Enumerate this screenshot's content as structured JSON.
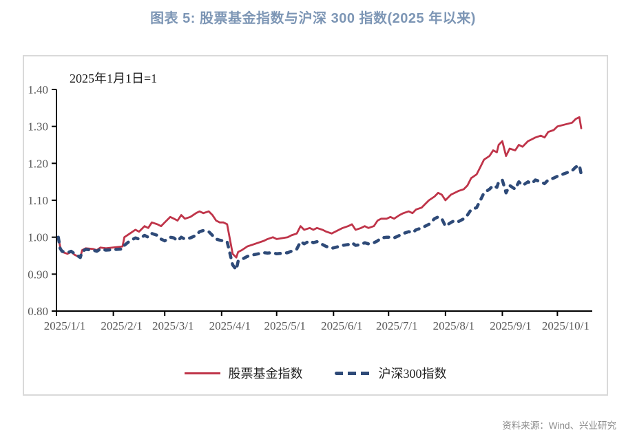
{
  "page": {
    "title": "图表 5:  股票基金指数与沪深 300 指数(2025 年以来)",
    "source": "资料来源：Wind、兴业研究"
  },
  "colors": {
    "title": "#7d96b5",
    "fund_line": "#bf3449",
    "csi300_line": "#2e4a78",
    "axis": "#000000",
    "tick_text": "#595959",
    "frame_border": "#d9d9d9",
    "source_text": "#8c8c8c"
  },
  "chart_data": {
    "type": "line",
    "title": "股票基金指数与沪深300指数(2025年以来)",
    "annotation": "2025年1月1日=1",
    "x_axis": {
      "tick_labels": [
        "2025/1/1",
        "2025/2/1",
        "2025/3/1",
        "2025/4/1",
        "2025/5/1",
        "2025/6/1",
        "2025/7/1",
        "2025/8/1",
        "2025/9/1",
        "2025/10/1"
      ],
      "tick_days": [
        0,
        31,
        59,
        90,
        120,
        151,
        181,
        212,
        243,
        273
      ],
      "domain_days": [
        0,
        292
      ]
    },
    "y_axis": {
      "tick_labels": [
        "0.80",
        "0.90",
        "1.00",
        "1.10",
        "1.20",
        "1.30",
        "1.40"
      ],
      "range": [
        0.8,
        1.4
      ]
    },
    "legend_position": "bottom",
    "series": [
      {
        "name": "股票基金指数",
        "color": "#bf3449",
        "style": "solid",
        "points": [
          [
            1,
            1.0
          ],
          [
            2,
            0.975
          ],
          [
            3,
            0.96
          ],
          [
            6,
            0.955
          ],
          [
            8,
            0.96
          ],
          [
            10,
            0.952
          ],
          [
            13,
            0.945
          ],
          [
            14,
            0.965
          ],
          [
            16,
            0.97
          ],
          [
            20,
            0.968
          ],
          [
            22,
            0.965
          ],
          [
            24,
            0.972
          ],
          [
            27,
            0.97
          ],
          [
            36,
            0.975
          ],
          [
            37,
            1.0
          ],
          [
            40,
            1.01
          ],
          [
            43,
            1.02
          ],
          [
            45,
            1.015
          ],
          [
            48,
            1.03
          ],
          [
            50,
            1.025
          ],
          [
            52,
            1.04
          ],
          [
            55,
            1.035
          ],
          [
            57,
            1.03
          ],
          [
            59,
            1.04
          ],
          [
            62,
            1.055
          ],
          [
            64,
            1.05
          ],
          [
            66,
            1.045
          ],
          [
            68,
            1.06
          ],
          [
            70,
            1.05
          ],
          [
            73,
            1.055
          ],
          [
            76,
            1.065
          ],
          [
            78,
            1.07
          ],
          [
            80,
            1.065
          ],
          [
            83,
            1.07
          ],
          [
            85,
            1.06
          ],
          [
            87,
            1.045
          ],
          [
            89,
            1.04
          ],
          [
            91,
            1.04
          ],
          [
            93,
            1.035
          ],
          [
            96,
            0.955
          ],
          [
            98,
            0.945
          ],
          [
            99,
            0.96
          ],
          [
            101,
            0.965
          ],
          [
            104,
            0.975
          ],
          [
            107,
            0.98
          ],
          [
            110,
            0.985
          ],
          [
            113,
            0.99
          ],
          [
            115,
            0.995
          ],
          [
            118,
            1.0
          ],
          [
            120,
            0.995
          ],
          [
            126,
            1.0
          ],
          [
            128,
            1.005
          ],
          [
            131,
            1.01
          ],
          [
            133,
            1.03
          ],
          [
            135,
            1.02
          ],
          [
            138,
            1.025
          ],
          [
            140,
            1.02
          ],
          [
            142,
            1.025
          ],
          [
            145,
            1.02
          ],
          [
            147,
            1.015
          ],
          [
            150,
            1.01
          ],
          [
            154,
            1.02
          ],
          [
            156,
            1.025
          ],
          [
            159,
            1.03
          ],
          [
            161,
            1.035
          ],
          [
            163,
            1.02
          ],
          [
            166,
            1.025
          ],
          [
            168,
            1.03
          ],
          [
            170,
            1.025
          ],
          [
            173,
            1.03
          ],
          [
            175,
            1.045
          ],
          [
            177,
            1.05
          ],
          [
            180,
            1.05
          ],
          [
            182,
            1.055
          ],
          [
            184,
            1.05
          ],
          [
            187,
            1.06
          ],
          [
            189,
            1.065
          ],
          [
            192,
            1.07
          ],
          [
            194,
            1.065
          ],
          [
            196,
            1.075
          ],
          [
            199,
            1.08
          ],
          [
            201,
            1.09
          ],
          [
            203,
            1.1
          ],
          [
            206,
            1.11
          ],
          [
            208,
            1.12
          ],
          [
            210,
            1.115
          ],
          [
            212,
            1.1
          ],
          [
            215,
            1.115
          ],
          [
            217,
            1.12
          ],
          [
            219,
            1.125
          ],
          [
            222,
            1.13
          ],
          [
            224,
            1.14
          ],
          [
            226,
            1.16
          ],
          [
            229,
            1.17
          ],
          [
            231,
            1.19
          ],
          [
            233,
            1.21
          ],
          [
            236,
            1.22
          ],
          [
            238,
            1.235
          ],
          [
            240,
            1.23
          ],
          [
            241,
            1.25
          ],
          [
            243,
            1.26
          ],
          [
            245,
            1.22
          ],
          [
            247,
            1.24
          ],
          [
            250,
            1.235
          ],
          [
            252,
            1.25
          ],
          [
            254,
            1.245
          ],
          [
            257,
            1.26
          ],
          [
            259,
            1.265
          ],
          [
            261,
            1.27
          ],
          [
            264,
            1.275
          ],
          [
            266,
            1.27
          ],
          [
            268,
            1.285
          ],
          [
            271,
            1.29
          ],
          [
            273,
            1.3
          ],
          [
            281,
            1.31
          ],
          [
            283,
            1.32
          ],
          [
            285,
            1.325
          ],
          [
            286,
            1.295
          ]
        ]
      },
      {
        "name": "沪深300指数",
        "color": "#2e4a78",
        "style": "dashed",
        "points": [
          [
            1,
            1.0
          ],
          [
            2,
            0.97
          ],
          [
            3,
            0.962
          ],
          [
            6,
            0.958
          ],
          [
            8,
            0.962
          ],
          [
            10,
            0.955
          ],
          [
            13,
            0.945
          ],
          [
            14,
            0.962
          ],
          [
            16,
            0.967
          ],
          [
            20,
            0.965
          ],
          [
            22,
            0.962
          ],
          [
            24,
            0.968
          ],
          [
            27,
            0.965
          ],
          [
            36,
            0.968
          ],
          [
            37,
            0.978
          ],
          [
            40,
            0.99
          ],
          [
            43,
            0.998
          ],
          [
            45,
            0.995
          ],
          [
            48,
            1.005
          ],
          [
            50,
            1.0
          ],
          [
            52,
            1.01
          ],
          [
            55,
            1.005
          ],
          [
            57,
            0.995
          ],
          [
            59,
            0.99
          ],
          [
            62,
            1.0
          ],
          [
            64,
            0.998
          ],
          [
            66,
            0.99
          ],
          [
            68,
            1.0
          ],
          [
            70,
            0.995
          ],
          [
            73,
            0.998
          ],
          [
            76,
            1.005
          ],
          [
            78,
            1.015
          ],
          [
            80,
            1.018
          ],
          [
            83,
            1.015
          ],
          [
            85,
            1.005
          ],
          [
            87,
            0.995
          ],
          [
            89,
            0.992
          ],
          [
            91,
            0.99
          ],
          [
            93,
            0.988
          ],
          [
            96,
            0.925
          ],
          [
            98,
            0.912
          ],
          [
            99,
            0.935
          ],
          [
            101,
            0.94
          ],
          [
            104,
            0.948
          ],
          [
            107,
            0.952
          ],
          [
            110,
            0.955
          ],
          [
            113,
            0.958
          ],
          [
            115,
            0.957
          ],
          [
            118,
            0.958
          ],
          [
            120,
            0.955
          ],
          [
            126,
            0.958
          ],
          [
            128,
            0.962
          ],
          [
            131,
            0.968
          ],
          [
            133,
            0.988
          ],
          [
            135,
            0.982
          ],
          [
            138,
            0.99
          ],
          [
            140,
            0.985
          ],
          [
            142,
            0.988
          ],
          [
            145,
            0.98
          ],
          [
            147,
            0.975
          ],
          [
            150,
            0.97
          ],
          [
            154,
            0.975
          ],
          [
            156,
            0.978
          ],
          [
            159,
            0.98
          ],
          [
            161,
            0.985
          ],
          [
            163,
            0.978
          ],
          [
            166,
            0.98
          ],
          [
            168,
            0.985
          ],
          [
            170,
            0.982
          ],
          [
            173,
            0.985
          ],
          [
            175,
            0.99
          ],
          [
            177,
            0.998
          ],
          [
            180,
            1.0
          ],
          [
            182,
            1.0
          ],
          [
            184,
            0.998
          ],
          [
            187,
            1.005
          ],
          [
            189,
            1.01
          ],
          [
            192,
            1.015
          ],
          [
            194,
            1.012
          ],
          [
            196,
            1.02
          ],
          [
            199,
            1.025
          ],
          [
            201,
            1.03
          ],
          [
            203,
            1.035
          ],
          [
            206,
            1.05
          ],
          [
            208,
            1.055
          ],
          [
            210,
            1.05
          ],
          [
            212,
            1.03
          ],
          [
            215,
            1.04
          ],
          [
            217,
            1.045
          ],
          [
            219,
            1.042
          ],
          [
            222,
            1.05
          ],
          [
            224,
            1.06
          ],
          [
            226,
            1.075
          ],
          [
            229,
            1.08
          ],
          [
            231,
            1.1
          ],
          [
            233,
            1.12
          ],
          [
            236,
            1.13
          ],
          [
            238,
            1.14
          ],
          [
            240,
            1.135
          ],
          [
            241,
            1.15
          ],
          [
            243,
            1.155
          ],
          [
            245,
            1.12
          ],
          [
            247,
            1.14
          ],
          [
            250,
            1.13
          ],
          [
            252,
            1.15
          ],
          [
            254,
            1.14
          ],
          [
            257,
            1.15
          ],
          [
            259,
            1.145
          ],
          [
            261,
            1.155
          ],
          [
            264,
            1.15
          ],
          [
            266,
            1.145
          ],
          [
            268,
            1.155
          ],
          [
            271,
            1.16
          ],
          [
            273,
            1.165
          ],
          [
            281,
            1.18
          ],
          [
            283,
            1.19
          ],
          [
            285,
            1.195
          ],
          [
            286,
            1.17
          ]
        ]
      }
    ]
  }
}
